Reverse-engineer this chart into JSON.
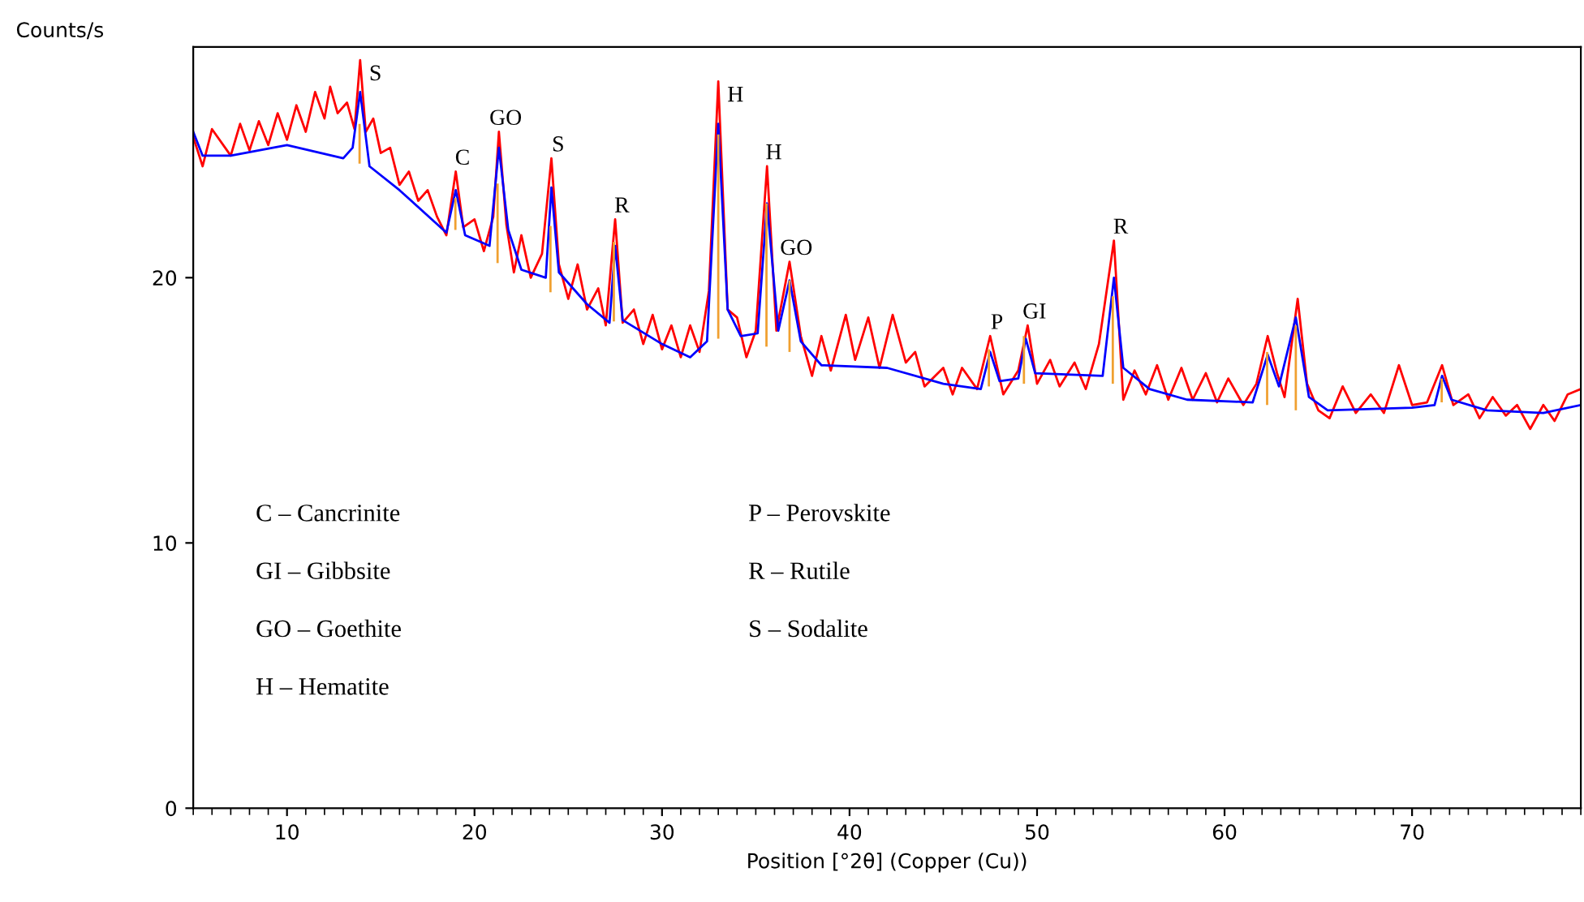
{
  "chart_data": {
    "type": "line",
    "xlabel": "Position [°2θ] (Copper (Cu))",
    "ylabel": "Counts/s",
    "xlim": [
      5,
      79
    ],
    "ylim": [
      0,
      28.7
    ],
    "xticks": [
      10,
      20,
      30,
      40,
      50,
      60,
      70
    ],
    "yticks": [
      0,
      10,
      20
    ],
    "grid": false,
    "legend": false,
    "series": [
      {
        "color": "#ff0000",
        "x": [
          5,
          5.5,
          6,
          7,
          7.5,
          8,
          8.5,
          9,
          9.5,
          10,
          10.5,
          11,
          11.5,
          12,
          12.3,
          12.7,
          13.2,
          13.6,
          13.9,
          14.2,
          14.6,
          15,
          15.5,
          16,
          16.5,
          17,
          17.5,
          18,
          18.5,
          19,
          19.4,
          20,
          20.5,
          21,
          21.3,
          21.7,
          22.1,
          22.5,
          23,
          23.6,
          24.1,
          24.5,
          25,
          25.5,
          26,
          26.6,
          27,
          27.5,
          27.9,
          28.5,
          29,
          29.5,
          30,
          30.5,
          31,
          31.5,
          32,
          32.5,
          33.0,
          33.5,
          34,
          34.5,
          35,
          35.6,
          36.1,
          36.8,
          37.4,
          38,
          38.5,
          39,
          39.8,
          40.3,
          41,
          41.6,
          42.3,
          43,
          43.5,
          44,
          45,
          45.5,
          46,
          46.8,
          47.5,
          48.2,
          49,
          49.5,
          50,
          50.7,
          51.2,
          52,
          52.6,
          53.3,
          54.1,
          54.6,
          55.2,
          55.8,
          56.4,
          57,
          57.7,
          58.3,
          59,
          59.6,
          60.2,
          61,
          61.7,
          62.3,
          62.8,
          63.2,
          63.9,
          64.4,
          65,
          65.6,
          66.3,
          67,
          67.8,
          68.5,
          69.3,
          70,
          70.8,
          71.6,
          72.2,
          73,
          73.6,
          74.3,
          75,
          75.6,
          76.3,
          77,
          77.6,
          78.3,
          79
        ],
        "values": [
          25.3,
          24.2,
          25.6,
          24.6,
          25.8,
          24.8,
          25.9,
          25.0,
          26.2,
          25.2,
          26.5,
          25.5,
          27.0,
          26.0,
          27.2,
          26.2,
          26.6,
          25.6,
          28.2,
          25.5,
          26.0,
          24.7,
          24.9,
          23.5,
          24.0,
          22.9,
          23.3,
          22.3,
          21.6,
          24.0,
          21.9,
          22.2,
          21.0,
          22.3,
          25.5,
          22.0,
          20.2,
          21.6,
          20.0,
          20.9,
          24.5,
          20.5,
          19.2,
          20.5,
          18.8,
          19.6,
          18.2,
          22.2,
          18.3,
          18.8,
          17.5,
          18.6,
          17.3,
          18.2,
          17.0,
          18.2,
          17.2,
          19.5,
          27.4,
          18.8,
          18.5,
          17.0,
          18.0,
          24.2,
          18.0,
          20.6,
          17.8,
          16.3,
          17.8,
          16.5,
          18.6,
          16.9,
          18.5,
          16.6,
          18.6,
          16.8,
          17.2,
          15.9,
          16.6,
          15.6,
          16.6,
          15.8,
          17.8,
          15.6,
          16.5,
          18.2,
          16.0,
          16.9,
          15.9,
          16.8,
          15.8,
          17.5,
          21.4,
          15.4,
          16.5,
          15.6,
          16.7,
          15.4,
          16.6,
          15.4,
          16.4,
          15.3,
          16.2,
          15.2,
          16.0,
          17.8,
          16.4,
          15.5,
          19.2,
          16.0,
          15.0,
          14.7,
          15.9,
          14.9,
          15.6,
          14.9,
          16.7,
          15.2,
          15.3,
          16.7,
          15.2,
          15.6,
          14.7,
          15.5,
          14.8,
          15.2,
          14.3,
          15.2,
          14.6,
          15.6,
          15.8
        ]
      },
      {
        "color": "#0000ff",
        "x": [
          5,
          5.5,
          7,
          10,
          13,
          13.5,
          13.9,
          14.4,
          16,
          18.5,
          19,
          19.5,
          20.8,
          21.3,
          21.8,
          22.5,
          23.8,
          24.1,
          24.5,
          26,
          27.2,
          27.5,
          27.9,
          30,
          31.5,
          32.4,
          33.0,
          33.5,
          34.2,
          35.1,
          35.6,
          36.2,
          36.8,
          37.4,
          38.5,
          42,
          45,
          47,
          47.5,
          48,
          49,
          49.4,
          49.9,
          53.5,
          54.1,
          54.6,
          56,
          58,
          61.5,
          62.3,
          62.9,
          63.8,
          64.5,
          65.5,
          70,
          71.2,
          71.6,
          72.1,
          74,
          77,
          79
        ],
        "values": [
          25.5,
          24.6,
          24.6,
          25.0,
          24.5,
          24.9,
          27.0,
          24.2,
          23.3,
          21.7,
          23.3,
          21.6,
          21.2,
          24.9,
          21.8,
          20.3,
          20.0,
          23.4,
          20.2,
          19.0,
          18.3,
          21.2,
          18.4,
          17.5,
          17.0,
          17.6,
          25.8,
          18.8,
          17.8,
          17.9,
          22.8,
          18.0,
          19.9,
          17.6,
          16.7,
          16.6,
          16.0,
          15.8,
          17.2,
          16.1,
          16.2,
          17.7,
          16.4,
          16.3,
          20.0,
          16.6,
          15.8,
          15.4,
          15.3,
          17.1,
          15.9,
          18.5,
          15.5,
          15.0,
          15.1,
          15.2,
          16.3,
          15.4,
          15.0,
          14.9,
          15.2
        ]
      },
      {
        "type": "bar",
        "color": "#f0a030",
        "x": [
          13.87,
          18.98,
          21.23,
          24.05,
          27.43,
          33.0,
          35.57,
          36.8,
          47.43,
          49.3,
          54.04,
          62.27,
          63.8,
          71.58
        ],
        "base": [
          24.3,
          21.8,
          20.55,
          19.45,
          18.35,
          17.7,
          17.4,
          17.2,
          15.9,
          16.0,
          16.0,
          15.2,
          15.0,
          15.3
        ],
        "values": [
          1.5,
          1.2,
          3.0,
          2.5,
          3.0,
          7.7,
          5.4,
          2.7,
          1.4,
          1.8,
          3.3,
          2.0,
          3.2,
          0.9
        ]
      }
    ],
    "annotations": [
      {
        "text": "S",
        "x": 13.9,
        "y": 28.2
      },
      {
        "text": "C",
        "x": 19,
        "y": 24.0
      },
      {
        "text": "GO",
        "x": 21.3,
        "y": 25.5
      },
      {
        "text": "S",
        "x": 24.1,
        "y": 24.5
      },
      {
        "text": "R",
        "x": 27.5,
        "y": 22.2
      },
      {
        "text": "H",
        "x": 33.0,
        "y": 27.4
      },
      {
        "text": "H",
        "x": 35.6,
        "y": 24.2
      },
      {
        "text": "GO",
        "x": 36.8,
        "y": 20.6
      },
      {
        "text": "P",
        "x": 47.5,
        "y": 17.8
      },
      {
        "text": "GI",
        "x": 49.5,
        "y": 18.2
      },
      {
        "text": "R",
        "x": 54.1,
        "y": 21.4
      },
      "C – Cancrinite",
      "GI – Gibbsite",
      "GO – Goethite",
      "H – Hematite",
      "P – Perovskite",
      "R – Rutile",
      "S – Sodalite"
    ]
  }
}
